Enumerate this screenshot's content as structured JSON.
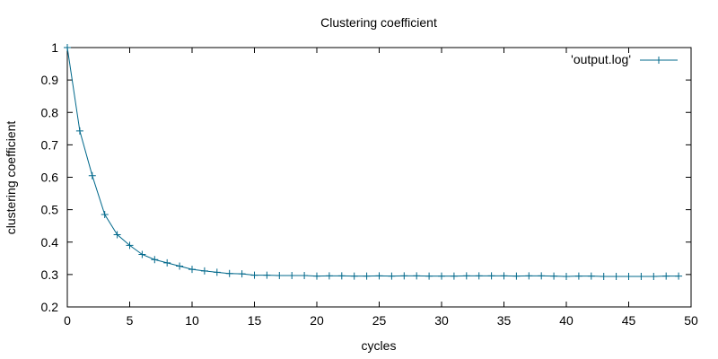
{
  "chart_data": {
    "type": "line",
    "title": "Clustering coefficient",
    "xlabel": "cycles",
    "ylabel": "clustering coefficient",
    "xlim": [
      0,
      50
    ],
    "ylim": [
      0.2,
      1
    ],
    "xticks": [
      "0",
      "5",
      "10",
      "15",
      "20",
      "25",
      "30",
      "35",
      "40",
      "45",
      "50"
    ],
    "yticks": [
      "0.2",
      "0.3",
      "0.4",
      "0.5",
      "0.6",
      "0.7",
      "0.8",
      "0.9",
      "1"
    ],
    "grid": false,
    "legend_position": "top-right",
    "series": [
      {
        "name": "'output.log'",
        "color": "#00688b",
        "marker": "plus",
        "x": [
          0,
          1,
          2,
          3,
          4,
          5,
          6,
          7,
          8,
          9,
          10,
          11,
          12,
          13,
          14,
          15,
          16,
          17,
          18,
          19,
          20,
          21,
          22,
          23,
          24,
          25,
          26,
          27,
          28,
          29,
          30,
          31,
          32,
          33,
          34,
          35,
          36,
          37,
          38,
          39,
          40,
          41,
          42,
          43,
          44,
          45,
          46,
          47,
          48,
          49
        ],
        "y": [
          1.0,
          0.743,
          0.605,
          0.485,
          0.423,
          0.39,
          0.362,
          0.346,
          0.336,
          0.326,
          0.316,
          0.311,
          0.307,
          0.303,
          0.302,
          0.298,
          0.298,
          0.297,
          0.297,
          0.297,
          0.295,
          0.296,
          0.296,
          0.295,
          0.295,
          0.296,
          0.295,
          0.296,
          0.296,
          0.295,
          0.295,
          0.295,
          0.296,
          0.296,
          0.296,
          0.296,
          0.295,
          0.296,
          0.296,
          0.295,
          0.294,
          0.295,
          0.295,
          0.294,
          0.294,
          0.294,
          0.294,
          0.294,
          0.295,
          0.295
        ]
      }
    ]
  }
}
